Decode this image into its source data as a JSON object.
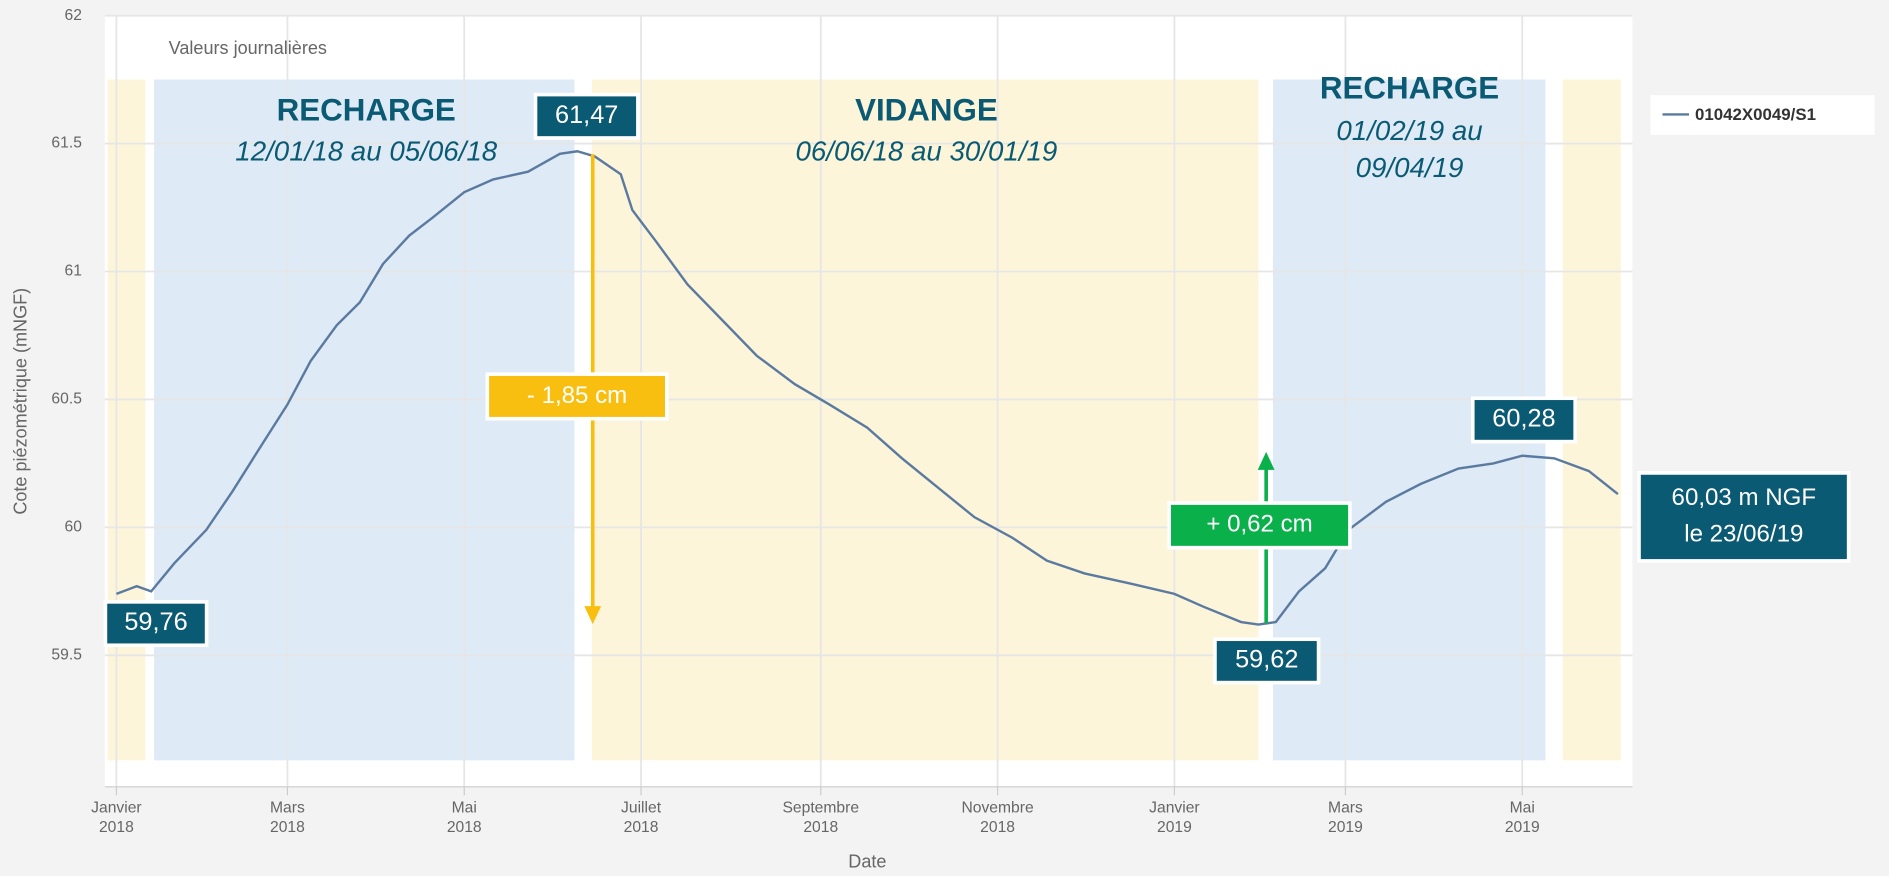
{
  "chart_data": {
    "type": "line",
    "subtitle": "Valeurs journalières",
    "x_label": "Date",
    "y_label": "Cote piézométrique (mNGF)",
    "xlim": [
      "2017-12-28",
      "2019-06-08"
    ],
    "ylim": [
      59,
      62
    ],
    "yticks": [
      59.5,
      60,
      60.5,
      61,
      61.5,
      62
    ],
    "xticks": [
      {
        "value": "2018-01-01",
        "label": [
          "Janvier",
          "2018"
        ]
      },
      {
        "value": "2018-03-01",
        "label": [
          "Mars",
          "2018"
        ]
      },
      {
        "value": "2018-05-01",
        "label": [
          "Mai",
          "2018"
        ]
      },
      {
        "value": "2018-07-01",
        "label": [
          "Juillet",
          "2018"
        ]
      },
      {
        "value": "2018-09-01",
        "label": [
          "Septembre",
          "2018"
        ]
      },
      {
        "value": "2018-11-01",
        "label": [
          "Novembre",
          "2018"
        ]
      },
      {
        "value": "2019-01-01",
        "label": [
          "Janvier",
          "2019"
        ]
      },
      {
        "value": "2019-03-01",
        "label": [
          "Mars",
          "2019"
        ]
      },
      {
        "value": "2019-05-01",
        "label": [
          "Mai",
          "2019"
        ]
      }
    ],
    "grid": true,
    "legend": "top-right",
    "periods": [
      {
        "start": "2017-12-29",
        "end": "2018-01-11",
        "color": "#fdf5da"
      },
      {
        "start": "2018-01-14",
        "end": "2018-06-08",
        "color": "#dfeaf7"
      },
      {
        "start": "2018-06-14",
        "end": "2019-01-30",
        "color": "#fdf5da"
      },
      {
        "start": "2019-02-04",
        "end": "2019-05-09",
        "color": "#dfeaf7"
      },
      {
        "start": "2019-05-15",
        "end": "2019-06-04",
        "color": "#fdf5da"
      }
    ],
    "x": [
      "2018-01-01",
      "2018-01-08",
      "2018-01-13",
      "2018-01-21",
      "2018-02-01",
      "2018-02-10",
      "2018-02-20",
      "2018-03-01",
      "2018-03-09",
      "2018-03-18",
      "2018-03-26",
      "2018-04-03",
      "2018-04-12",
      "2018-04-20",
      "2018-05-01",
      "2018-05-11",
      "2018-05-23",
      "2018-06-03",
      "2018-06-09",
      "2018-06-15",
      "2018-06-24",
      "2018-06-28",
      "2018-07-06",
      "2018-07-17",
      "2018-07-29",
      "2018-08-10",
      "2018-08-23",
      "2018-09-04",
      "2018-09-17",
      "2018-09-29",
      "2018-10-12",
      "2018-10-24",
      "2018-11-06",
      "2018-11-18",
      "2018-12-01",
      "2018-12-17",
      "2019-01-01",
      "2019-01-11",
      "2019-01-24",
      "2019-01-30",
      "2019-02-05",
      "2019-02-13",
      "2019-02-22",
      "2019-03-02",
      "2019-03-15",
      "2019-03-27",
      "2019-04-09",
      "2019-04-21",
      "2019-05-01",
      "2019-05-12",
      "2019-05-24",
      "2019-06-03"
    ],
    "series": [
      {
        "name": "01042X0049/S1",
        "color": "#5b7a9f",
        "values": [
          59.74,
          59.77,
          59.75,
          59.86,
          59.99,
          60.14,
          60.32,
          60.48,
          60.65,
          60.79,
          60.88,
          61.03,
          61.14,
          61.21,
          61.31,
          61.36,
          61.39,
          61.46,
          61.47,
          61.45,
          61.38,
          61.24,
          61.12,
          60.95,
          60.81,
          60.67,
          60.56,
          60.48,
          60.39,
          60.27,
          60.15,
          60.04,
          59.96,
          59.87,
          59.82,
          59.78,
          59.74,
          59.69,
          59.63,
          59.62,
          59.63,
          59.75,
          59.84,
          59.99,
          60.1,
          60.17,
          60.23,
          60.25,
          60.28,
          60.27,
          60.22,
          60.13
        ]
      }
    ],
    "annotations": [
      "RECHARGE",
      "12/01/18 au 05/06/18",
      "VIDANGE",
      "06/06/18 au 30/01/19",
      "RECHARGE",
      "01/02/19 au",
      "09/04/19"
    ],
    "value_boxes": [
      "61,47",
      "59,76",
      "59,62",
      "60,28"
    ],
    "last_value_box": [
      "60,03 m NGF",
      "le 23/06/19"
    ],
    "changes": [
      "- 1,85 cm",
      "+ 0,62 cm"
    ]
  }
}
